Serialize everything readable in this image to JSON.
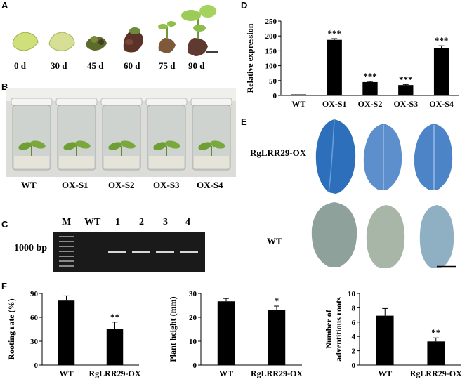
{
  "panels": {
    "A": {
      "letter": "A",
      "time_labels": [
        "0 d",
        "30 d",
        "45 d",
        "60 d",
        "75 d",
        "90 d"
      ]
    },
    "B": {
      "letter": "B",
      "jar_labels": [
        "WT",
        "OX-S1",
        "OX-S2",
        "OX-S3",
        "OX-S4"
      ]
    },
    "C": {
      "letter": "C",
      "lane_labels": [
        "M",
        "WT",
        "1",
        "2",
        "3",
        "4"
      ],
      "band_label": "1000 bp"
    },
    "D": {
      "letter": "D"
    },
    "E": {
      "letter": "E",
      "row_labels": [
        "RgLRR29-OX",
        "WT"
      ]
    },
    "F": {
      "letter": "F"
    }
  },
  "chart_data": [
    {
      "panel": "D",
      "type": "bar",
      "categories": [
        "WT",
        "OX-S1",
        "OX-S2",
        "OX-S3",
        "OX-S4"
      ],
      "values": [
        1,
        187,
        45,
        35,
        160
      ],
      "errors": [
        1,
        4,
        2,
        2,
        7
      ],
      "significance": [
        "",
        "***",
        "***",
        "***",
        "***"
      ],
      "ylabel": "Relative expression",
      "ylim": [
        0,
        250
      ],
      "yticks": [
        0,
        50,
        100,
        150,
        200,
        250
      ],
      "color": "#000000"
    },
    {
      "panel": "F1",
      "type": "bar",
      "categories": [
        "WT",
        "RgLRR29-OX"
      ],
      "values": [
        81,
        45
      ],
      "errors": [
        6,
        9
      ],
      "significance": [
        "",
        "**"
      ],
      "ylabel": "Rooting rate (%)",
      "ylim": [
        0,
        90
      ],
      "yticks": [
        0,
        30,
        60,
        90
      ],
      "color": "#000000"
    },
    {
      "panel": "F2",
      "type": "bar",
      "categories": [
        "WT",
        "RgLRR29-OX"
      ],
      "values": [
        26.7,
        23.2
      ],
      "errors": [
        1.2,
        1.5
      ],
      "significance": [
        "",
        "*"
      ],
      "ylabel": "Plant height (mm)",
      "ylim": [
        0,
        30
      ],
      "yticks": [
        0,
        10,
        20,
        30
      ],
      "color": "#000000"
    },
    {
      "panel": "F3",
      "type": "bar",
      "categories": [
        "WT",
        "RgLRR29-OX"
      ],
      "values": [
        6.9,
        3.3
      ],
      "errors": [
        1.0,
        0.5
      ],
      "significance": [
        "",
        "**"
      ],
      "ylabel": "Number of adventitious roots",
      "ylim": [
        0,
        10
      ],
      "yticks": [
        0,
        2,
        4,
        6,
        8,
        10
      ],
      "color": "#000000"
    }
  ]
}
